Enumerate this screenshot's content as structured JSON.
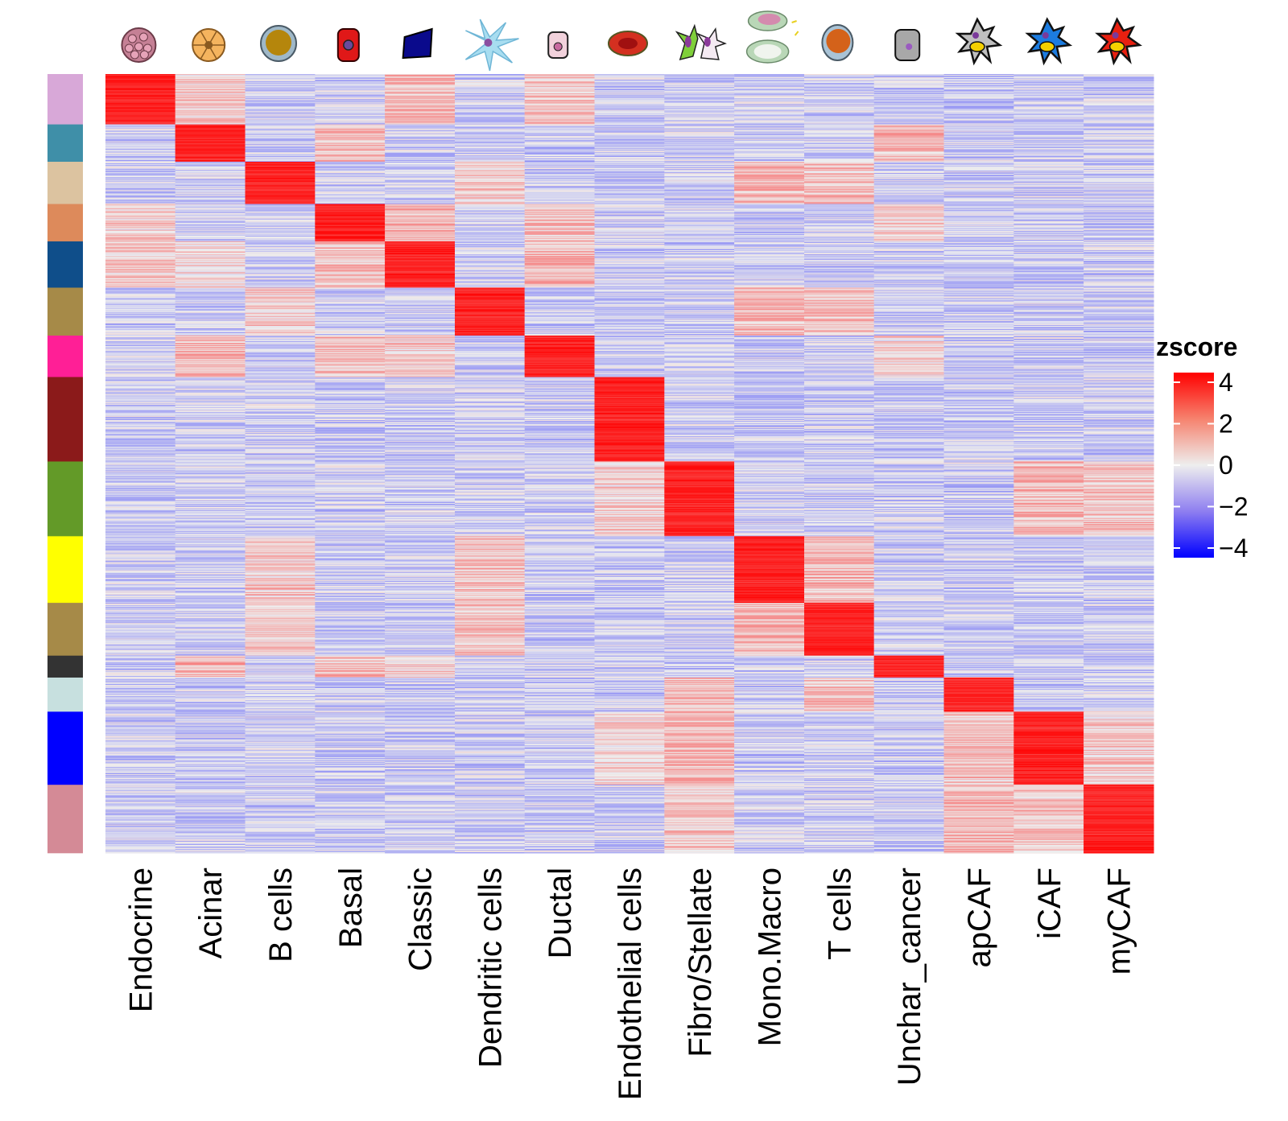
{
  "chart_data": {
    "type": "heatmap",
    "title": "",
    "xlabel": "",
    "ylabel": "",
    "columns": [
      "Endocrine",
      "Acinar",
      "B cells",
      "Basal",
      "Classic",
      "Dendritic cells",
      "Ductal",
      "Endothelial cells",
      "Fibro/Stellate",
      "Mono.Macro",
      "T cells",
      "Unchar_cancer",
      "apCAF",
      "iCAF",
      "myCAF"
    ],
    "row_groups": [
      {
        "name": "Endocrine",
        "color": "#D8A8D8",
        "rows": 62,
        "high": [
          0
        ],
        "mild": [
          4,
          6,
          1
        ]
      },
      {
        "name": "Acinar",
        "color": "#3F8FA8",
        "rows": 46,
        "high": [
          1
        ],
        "mild": [
          11,
          3
        ]
      },
      {
        "name": "B cells",
        "color": "#DCC3A0",
        "rows": 52,
        "high": [
          2
        ],
        "mild": [
          9,
          10,
          5
        ]
      },
      {
        "name": "Basal",
        "color": "#DD8A5B",
        "rows": 46,
        "high": [
          3
        ],
        "mild": [
          4,
          6,
          11,
          0
        ]
      },
      {
        "name": "Classic",
        "color": "#0F4E8A",
        "rows": 57,
        "high": [
          4
        ],
        "mild": [
          6,
          3,
          0,
          1
        ]
      },
      {
        "name": "Dendritic cells",
        "color": "#A68A48",
        "rows": 59,
        "high": [
          5
        ],
        "mild": [
          9,
          10,
          2
        ]
      },
      {
        "name": "Ductal",
        "color": "#FF1F96",
        "rows": 51,
        "high": [
          6
        ],
        "mild": [
          1,
          3,
          4,
          11
        ]
      },
      {
        "name": "Endothelial cells",
        "color": "#8B1A1A",
        "rows": 104,
        "high": [
          7
        ],
        "mild": []
      },
      {
        "name": "Fibro/Stellate",
        "color": "#639A28",
        "rows": 92,
        "high": [
          8
        ],
        "mild": [
          13,
          14,
          7
        ]
      },
      {
        "name": "Mono.Macro",
        "color": "#FFFF00",
        "rows": 82,
        "high": [
          9
        ],
        "mild": [
          10,
          5,
          2
        ]
      },
      {
        "name": "T cells",
        "color": "#A68A48",
        "rows": 65,
        "high": [
          10
        ],
        "mild": [
          9,
          5,
          2
        ]
      },
      {
        "name": "Unchar_cancer",
        "color": "#333333",
        "rows": 27,
        "high": [
          11
        ],
        "mild": [
          1,
          3,
          4
        ]
      },
      {
        "name": "apCAF",
        "color": "#C7E0DF",
        "rows": 42,
        "high": [
          12
        ],
        "mild": [
          8,
          10
        ]
      },
      {
        "name": "iCAF",
        "color": "#0000FF",
        "rows": 90,
        "high": [
          13
        ],
        "mild": [
          8,
          12,
          14,
          7
        ]
      },
      {
        "name": "myCAF",
        "color": "#D48A96",
        "rows": 84,
        "high": [
          14
        ],
        "mild": [
          12,
          13,
          8
        ]
      }
    ],
    "color_scale": {
      "label": "zscore",
      "min": -4,
      "max": 4,
      "ticks": [
        4,
        2,
        0,
        -2,
        -4
      ],
      "tick_labels": [
        "4",
        "2",
        "0",
        "−2",
        "−4"
      ],
      "colors": {
        "low": "#0000FF",
        "mid": "#EEEEEE",
        "high": "#FF0000"
      }
    },
    "legend": {
      "title": "zscore",
      "placement": "right"
    },
    "grid": false,
    "column_icons": [
      "endocrine-cell-icon",
      "acinar-cell-icon",
      "b-cell-icon",
      "basal-cell-icon",
      "classic-cell-icon",
      "dendritic-cell-icon",
      "ductal-cell-icon",
      "endothelial-cell-icon",
      "fibro-stellate-cell-icon",
      "mono-macro-cell-icon",
      "t-cell-icon",
      "unchar-cancer-cell-icon",
      "apcaf-cell-icon",
      "icaf-cell-icon",
      "mycaf-cell-icon"
    ]
  }
}
